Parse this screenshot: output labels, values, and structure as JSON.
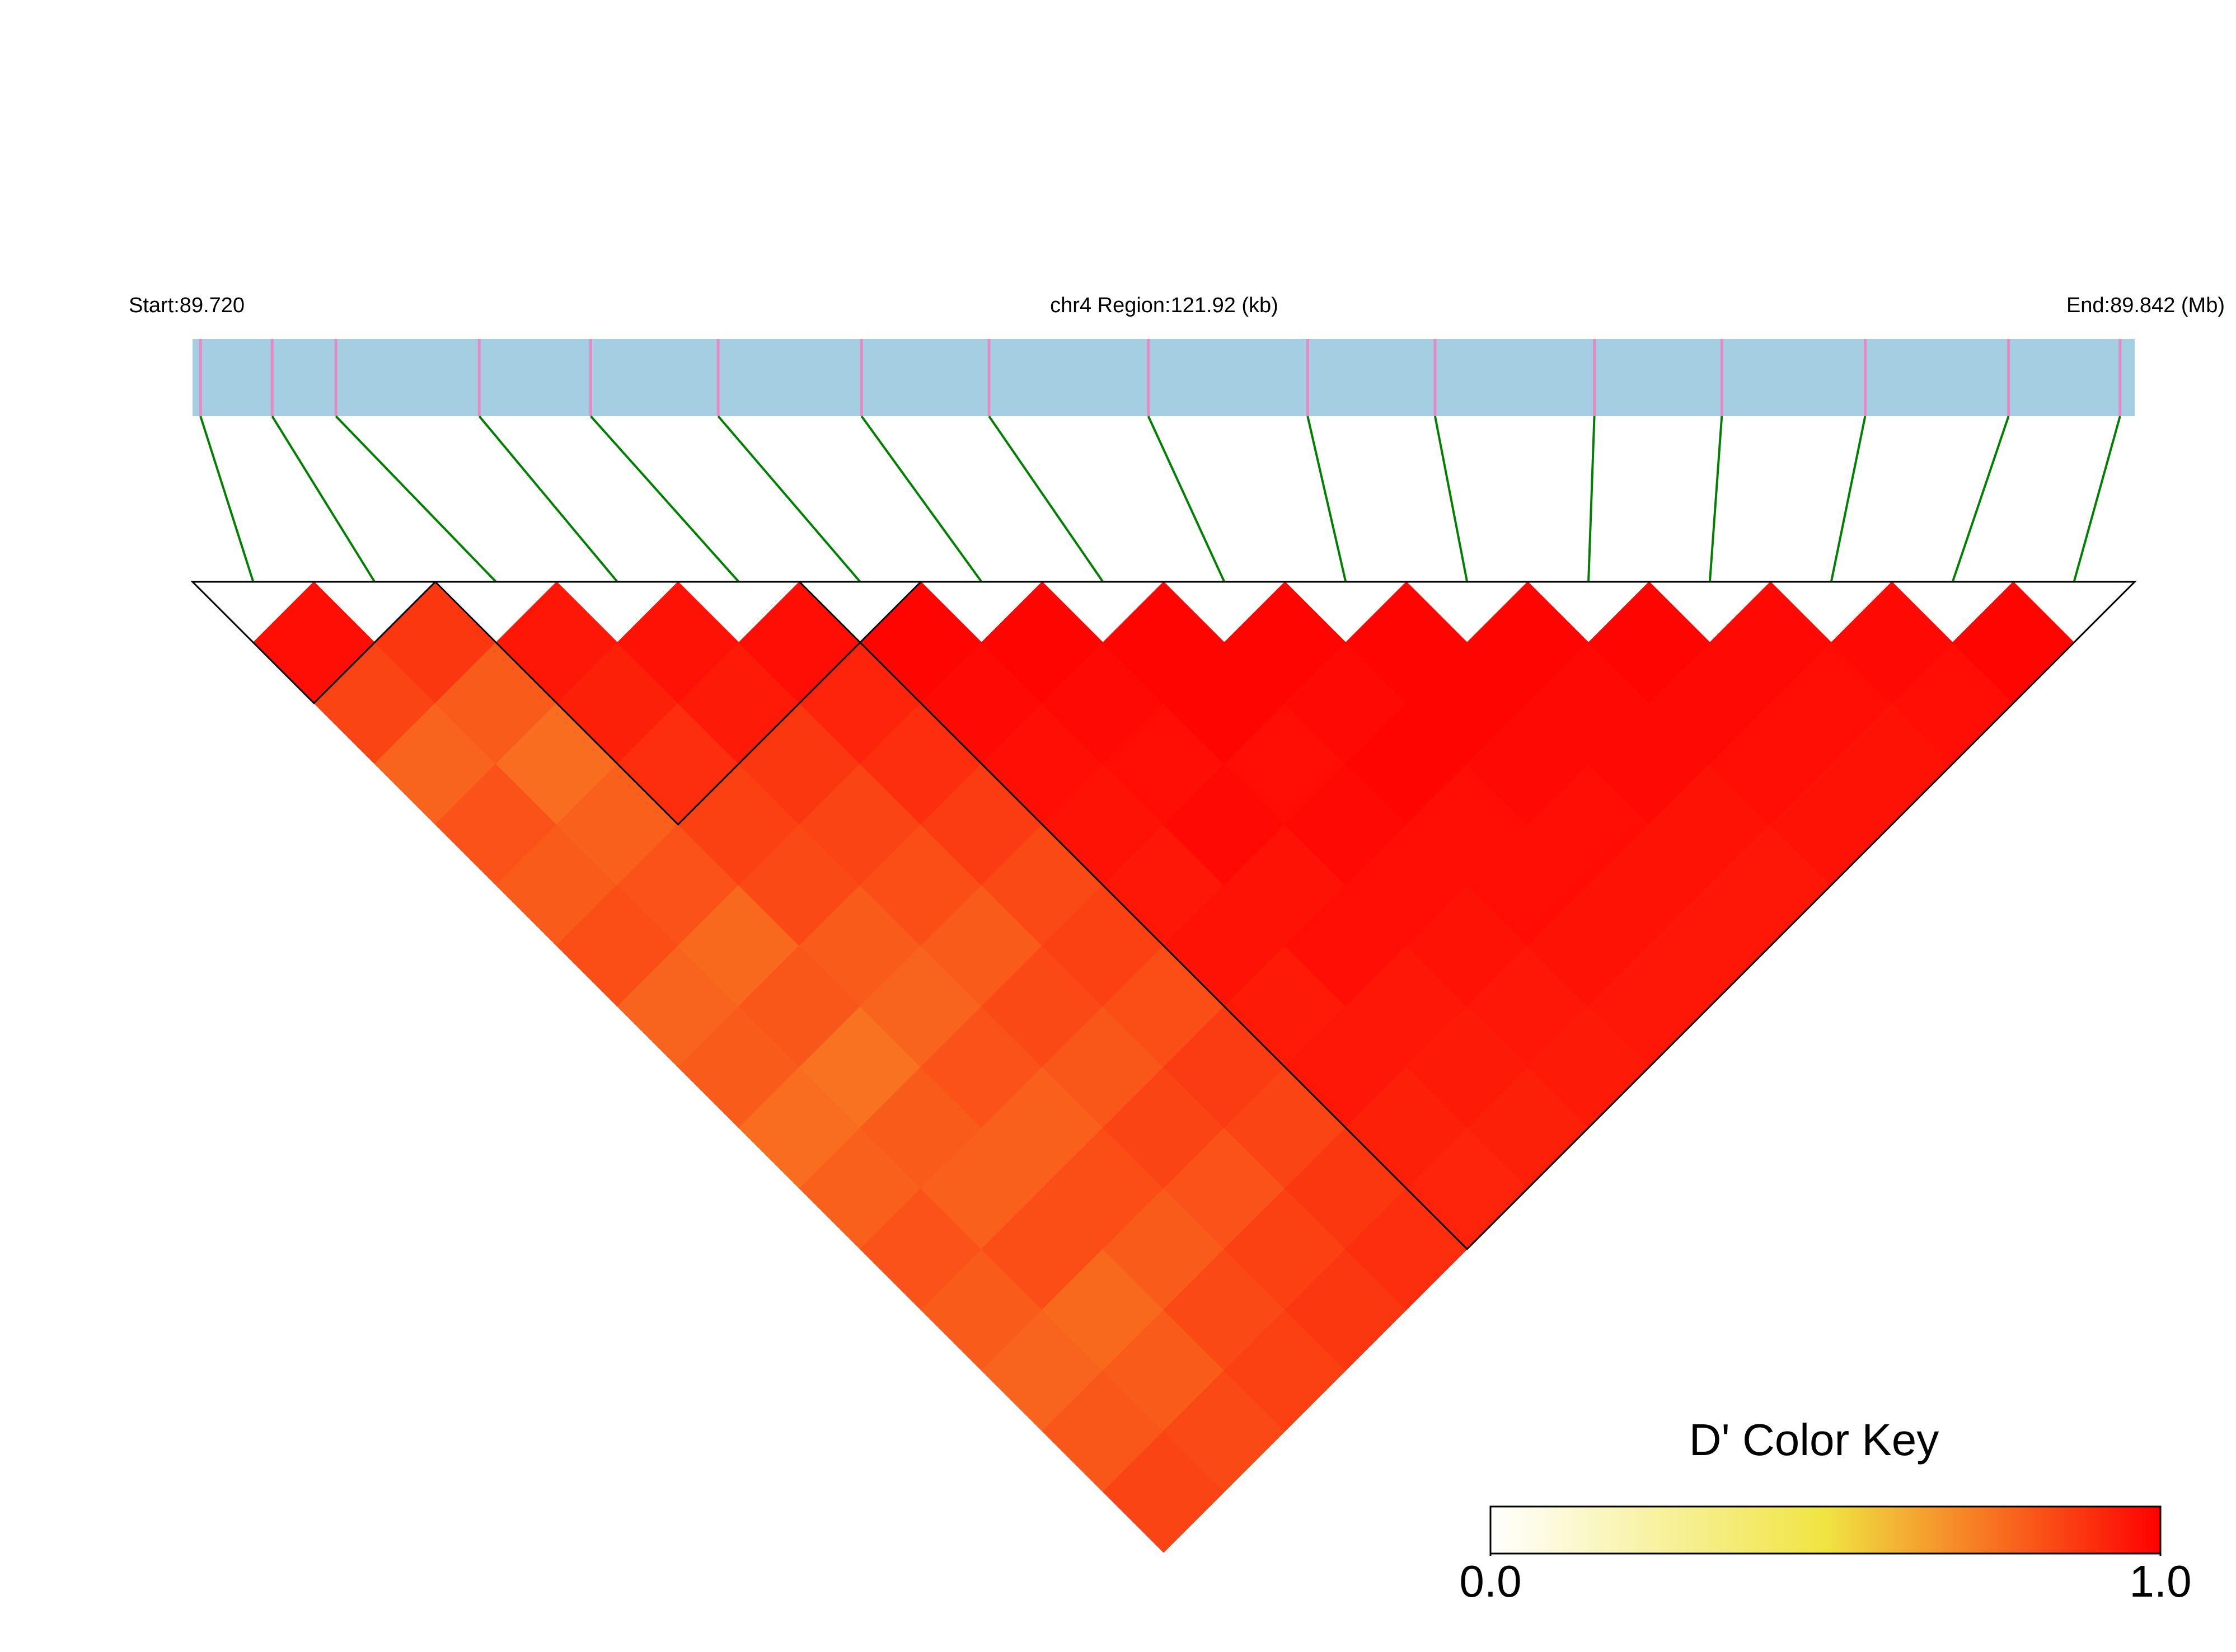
{
  "chart_data": {
    "type": "heatmap",
    "start_label": "Start:89.720",
    "region_label": "chr4 Region:121.92 (kb)",
    "end_label": "End:89.842 (Mb)",
    "xlim": [
      89.72,
      89.84192
    ],
    "snp_positions": [
      89.7205,
      89.725,
      89.729,
      89.738,
      89.745,
      89.753,
      89.762,
      89.77,
      89.78,
      89.79,
      89.798,
      89.808,
      89.816,
      89.825,
      89.834,
      89.841
    ],
    "values": [
      [
        0.97,
        0.85,
        0.78,
        0.82,
        0.8,
        0.83,
        0.78,
        0.8,
        0.76,
        0.79,
        0.82,
        0.8,
        0.78,
        0.81,
        0.85
      ],
      [
        0.88,
        0.8,
        0.76,
        0.79,
        0.82,
        0.77,
        0.81,
        0.75,
        0.8,
        0.79,
        0.83,
        0.77,
        0.8,
        0.84
      ],
      [
        0.95,
        0.93,
        0.9,
        0.86,
        0.84,
        0.8,
        0.78,
        0.82,
        0.79,
        0.83,
        0.8,
        0.84,
        0.86
      ],
      [
        0.96,
        0.94,
        0.88,
        0.85,
        0.83,
        0.8,
        0.84,
        0.81,
        0.85,
        0.82,
        0.86,
        0.88
      ],
      [
        0.97,
        0.92,
        0.9,
        0.87,
        0.84,
        0.86,
        0.83,
        0.87,
        0.85,
        0.88,
        0.9
      ],
      [
        0.99,
        0.98,
        0.97,
        0.96,
        0.95,
        0.96,
        0.94,
        0.95,
        0.93,
        0.92
      ],
      [
        0.99,
        0.98,
        0.97,
        0.98,
        0.96,
        0.97,
        0.95,
        0.94,
        0.93
      ],
      [
        0.99,
        0.99,
        0.97,
        0.98,
        0.97,
        0.96,
        0.95,
        0.94
      ],
      [
        0.99,
        0.98,
        0.99,
        0.97,
        0.97,
        0.96,
        0.95
      ],
      [
        0.99,
        0.99,
        0.98,
        0.97,
        0.96,
        0.95
      ],
      [
        0.99,
        0.98,
        0.98,
        0.96,
        0.95
      ],
      [
        0.99,
        0.98,
        0.97,
        0.96
      ],
      [
        0.98,
        0.97,
        0.96
      ],
      [
        0.98,
        0.97
      ],
      [
        0.99
      ]
    ],
    "blocks": [
      [
        0,
        1
      ],
      [
        2,
        5
      ],
      [
        5,
        15
      ]
    ],
    "colorscale": [
      "#ffffff",
      "#f0e442",
      "#ff0000"
    ],
    "zlim": [
      0,
      1
    ],
    "zticks": [
      {
        "value": 0,
        "label": "0.0"
      },
      {
        "value": 1,
        "label": "1.0"
      }
    ],
    "colorbar_title": "D' Color Key",
    "track_color": "#a6cee3",
    "snp_color": "#e78ac3",
    "link_color": "#008000",
    "block_color": "#000000"
  }
}
